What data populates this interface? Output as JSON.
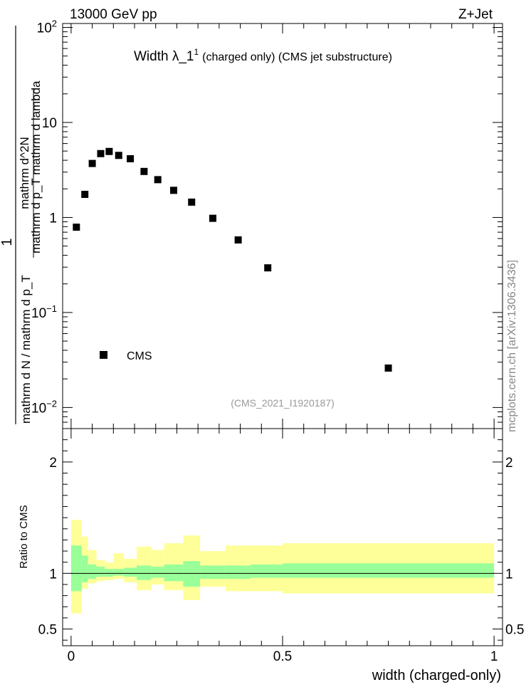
{
  "header": {
    "energy_label": "13000 GeV pp",
    "process_label": "Z+Jet",
    "side_label": "mcplots.cern.ch [arXiv:1306.3436]"
  },
  "chart_data": [
    {
      "type": "scatter",
      "title": "Width λ_1",
      "title_superscript": "1",
      "title_suffix": "(charged only) (CMS jet substructure)",
      "analysis_label": "(CMS_2021_I1920187)",
      "ylabel_numerator": "1",
      "ylabel_denominator": "mathrm d N / mathrm d p_T",
      "ylabel_numerator2": "mathrm d^2N",
      "ylabel_denominator2": "mathrm d p_T mathrm d lambda",
      "yscale": "log",
      "ylim": [
        0.006,
        110
      ],
      "xlim": [
        -0.02,
        1.02
      ],
      "y_ticks": [
        {
          "value": 100,
          "base": "10",
          "exp": "2"
        },
        {
          "value": 10,
          "base": "10",
          "exp": ""
        },
        {
          "value": 1,
          "base": "1",
          "exp": ""
        },
        {
          "value": 0.1,
          "base": "10",
          "exp": "−1"
        },
        {
          "value": 0.01,
          "base": "10",
          "exp": "−2"
        }
      ],
      "legend": {
        "entries": [
          "CMS"
        ],
        "placement": "lower-left"
      },
      "series": [
        {
          "name": "CMS",
          "x": [
            0.0125,
            0.0325,
            0.05,
            0.07,
            0.09,
            0.1125,
            0.14,
            0.1725,
            0.205,
            0.2425,
            0.285,
            0.335,
            0.395,
            0.465,
            0.75
          ],
          "y": [
            0.79,
            1.75,
            3.7,
            4.7,
            4.95,
            4.5,
            4.15,
            3.05,
            2.5,
            1.93,
            1.45,
            0.98,
            0.58,
            0.295,
            0.026
          ]
        }
      ]
    },
    {
      "type": "area",
      "ylabel": "Ratio to CMS",
      "xlabel": "width (charged-only)",
      "xlim": [
        -0.02,
        1.02
      ],
      "ylim": [
        0.35,
        2.3
      ],
      "x_tick_labels": [
        {
          "value": 0,
          "label": "0"
        },
        {
          "value": 0.5,
          "label": "0.5"
        },
        {
          "value": 1,
          "label": "1"
        }
      ],
      "y_tick_labels": [
        {
          "value": 0.5,
          "label": "0.5"
        },
        {
          "value": 1,
          "label": "1"
        },
        {
          "value": 2,
          "label": "2"
        }
      ],
      "bin_edges": [
        0,
        0.025,
        0.04,
        0.06,
        0.08,
        0.1,
        0.125,
        0.155,
        0.19,
        0.22,
        0.265,
        0.305,
        0.365,
        0.425,
        0.5,
        1.0
      ],
      "band_inner": {
        "color": "#99ff99",
        "lo": [
          0.84,
          0.92,
          0.95,
          0.97,
          0.97,
          0.98,
          0.97,
          0.94,
          0.96,
          0.93,
          0.88,
          0.95,
          0.95,
          0.96,
          0.96
        ],
        "hi": [
          1.25,
          1.16,
          1.08,
          1.06,
          1.04,
          1.04,
          1.05,
          1.07,
          1.06,
          1.08,
          1.11,
          1.07,
          1.07,
          1.08,
          1.09
        ]
      },
      "band_outer": {
        "color": "#ffff99",
        "lo": [
          0.64,
          0.86,
          0.91,
          0.93,
          0.94,
          0.95,
          0.92,
          0.85,
          0.9,
          0.85,
          0.76,
          0.88,
          0.84,
          0.84,
          0.82
        ],
        "hi": [
          1.48,
          1.33,
          1.21,
          1.12,
          1.1,
          1.18,
          1.13,
          1.24,
          1.21,
          1.27,
          1.34,
          1.2,
          1.25,
          1.25,
          1.27
        ]
      },
      "reference_line": 1
    }
  ]
}
